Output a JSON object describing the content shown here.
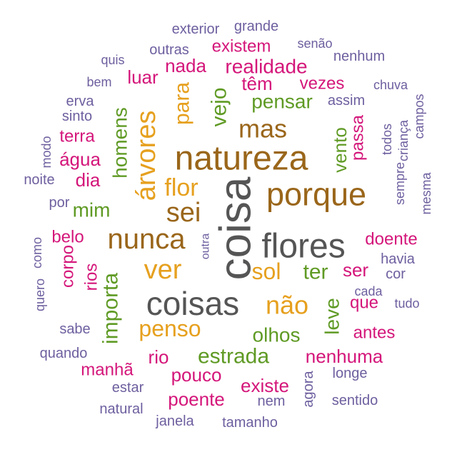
{
  "chart_data": {
    "type": "wordcloud",
    "title": "",
    "colors": {
      "gray": "#555555",
      "brown": "#9a661a",
      "gold": "#e6a01e",
      "green": "#5f9a24",
      "magenta": "#d4167a",
      "purple": "#6e5f9f"
    },
    "words": [
      {
        "text": "coisa",
        "color": "gray"
      },
      {
        "text": "coisas",
        "color": "gray"
      },
      {
        "text": "flores",
        "color": "gray"
      },
      {
        "text": "natureza",
        "color": "brown"
      },
      {
        "text": "porque",
        "color": "brown"
      },
      {
        "text": "nunca",
        "color": "brown"
      },
      {
        "text": "sei",
        "color": "brown"
      },
      {
        "text": "mas",
        "color": "brown"
      },
      {
        "text": "árvores",
        "color": "gold"
      },
      {
        "text": "ver",
        "color": "gold"
      },
      {
        "text": "não",
        "color": "gold"
      },
      {
        "text": "sol",
        "color": "gold"
      },
      {
        "text": "penso",
        "color": "gold"
      },
      {
        "text": "flor",
        "color": "gold"
      },
      {
        "text": "para",
        "color": "gold"
      },
      {
        "text": "vejo",
        "color": "green"
      },
      {
        "text": "pensar",
        "color": "green"
      },
      {
        "text": "homens",
        "color": "green"
      },
      {
        "text": "mim",
        "color": "green"
      },
      {
        "text": "importa",
        "color": "green"
      },
      {
        "text": "estrada",
        "color": "green"
      },
      {
        "text": "olhos",
        "color": "green"
      },
      {
        "text": "ter",
        "color": "green"
      },
      {
        "text": "leve",
        "color": "green"
      },
      {
        "text": "vento",
        "color": "green"
      },
      {
        "text": "realidade",
        "color": "magenta"
      },
      {
        "text": "existem",
        "color": "magenta"
      },
      {
        "text": "nada",
        "color": "magenta"
      },
      {
        "text": "luar",
        "color": "magenta"
      },
      {
        "text": "têm",
        "color": "magenta"
      },
      {
        "text": "vezes",
        "color": "magenta"
      },
      {
        "text": "terra",
        "color": "magenta"
      },
      {
        "text": "água",
        "color": "magenta"
      },
      {
        "text": "dia",
        "color": "magenta"
      },
      {
        "text": "passa",
        "color": "magenta"
      },
      {
        "text": "belo",
        "color": "magenta"
      },
      {
        "text": "doente",
        "color": "magenta"
      },
      {
        "text": "corpo",
        "color": "magenta"
      },
      {
        "text": "rios",
        "color": "magenta"
      },
      {
        "text": "ser",
        "color": "magenta"
      },
      {
        "text": "que",
        "color": "magenta"
      },
      {
        "text": "antes",
        "color": "magenta"
      },
      {
        "text": "rio",
        "color": "magenta"
      },
      {
        "text": "nenhuma",
        "color": "magenta"
      },
      {
        "text": "manhã",
        "color": "magenta"
      },
      {
        "text": "pouco",
        "color": "magenta"
      },
      {
        "text": "existe",
        "color": "magenta"
      },
      {
        "text": "poente",
        "color": "magenta"
      },
      {
        "text": "exterior",
        "color": "purple"
      },
      {
        "text": "grande",
        "color": "purple"
      },
      {
        "text": "senão",
        "color": "purple"
      },
      {
        "text": "quis",
        "color": "purple"
      },
      {
        "text": "outras",
        "color": "purple"
      },
      {
        "text": "nenhum",
        "color": "purple"
      },
      {
        "text": "bem",
        "color": "purple"
      },
      {
        "text": "chuva",
        "color": "purple"
      },
      {
        "text": "erva",
        "color": "purple"
      },
      {
        "text": "assim",
        "color": "purple"
      },
      {
        "text": "sinto",
        "color": "purple"
      },
      {
        "text": "campos",
        "color": "purple"
      },
      {
        "text": "criança",
        "color": "purple"
      },
      {
        "text": "todos",
        "color": "purple"
      },
      {
        "text": "modo",
        "color": "purple"
      },
      {
        "text": "sempre",
        "color": "purple"
      },
      {
        "text": "mesma",
        "color": "purple"
      },
      {
        "text": "noite",
        "color": "purple"
      },
      {
        "text": "por",
        "color": "purple"
      },
      {
        "text": "como",
        "color": "purple"
      },
      {
        "text": "quero",
        "color": "purple"
      },
      {
        "text": "outra",
        "color": "purple"
      },
      {
        "text": "havia",
        "color": "purple"
      },
      {
        "text": "cor",
        "color": "purple"
      },
      {
        "text": "cada",
        "color": "purple"
      },
      {
        "text": "tudo",
        "color": "purple"
      },
      {
        "text": "sabe",
        "color": "purple"
      },
      {
        "text": "quando",
        "color": "purple"
      },
      {
        "text": "longe",
        "color": "purple"
      },
      {
        "text": "agora",
        "color": "purple"
      },
      {
        "text": "estar",
        "color": "purple"
      },
      {
        "text": "nem",
        "color": "purple"
      },
      {
        "text": "sentido",
        "color": "purple"
      },
      {
        "text": "natural",
        "color": "purple"
      },
      {
        "text": "janela",
        "color": "purple"
      },
      {
        "text": "tamanho",
        "color": "purple"
      }
    ]
  }
}
